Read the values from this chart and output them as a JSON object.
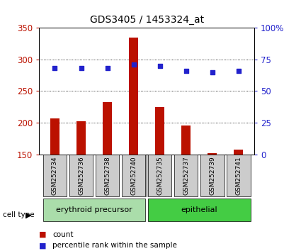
{
  "title": "GDS3405 / 1453324_at",
  "samples": [
    "GSM252734",
    "GSM252736",
    "GSM252738",
    "GSM252740",
    "GSM252735",
    "GSM252737",
    "GSM252739",
    "GSM252741"
  ],
  "counts": [
    207,
    202,
    232,
    334,
    225,
    196,
    152,
    158
  ],
  "percentile_ranks": [
    68,
    68,
    68,
    71,
    70,
    66,
    65,
    66
  ],
  "groups": [
    {
      "label": "erythroid precursor",
      "start": 0,
      "end": 3,
      "color": "#aaddaa"
    },
    {
      "label": "epithelial",
      "start": 4,
      "end": 7,
      "color": "#44cc44"
    }
  ],
  "bar_color": "#BB1100",
  "dot_color": "#2222CC",
  "ylim_left": [
    150,
    350
  ],
  "ylim_right": [
    0,
    100
  ],
  "yticks_left": [
    150,
    200,
    250,
    300,
    350
  ],
  "yticks_right": [
    0,
    25,
    50,
    75,
    100
  ],
  "plot_bg": "#FFFFFF",
  "sample_bg": "#CCCCCC",
  "legend_count_color": "#BB1100",
  "legend_dot_color": "#2222CC"
}
